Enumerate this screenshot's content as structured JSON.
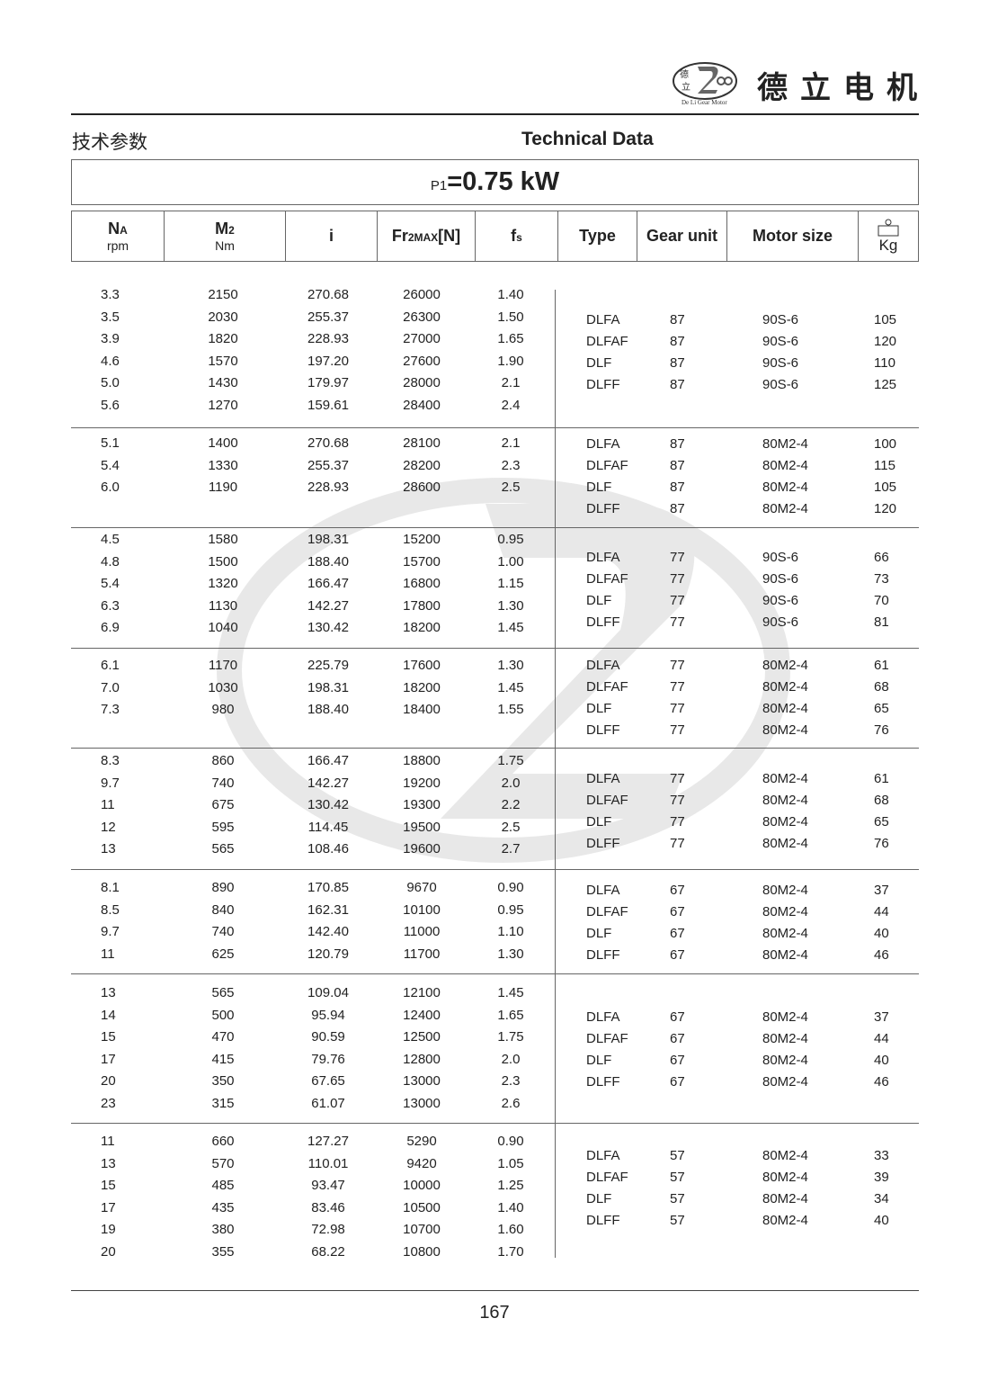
{
  "header": {
    "brand_cn": "德立电机",
    "logo_text": "De Li Gear Motor",
    "title_cn": "技术参数",
    "title_en": "Technical Data"
  },
  "power": {
    "symbol": "P",
    "subscript": "1",
    "value": "=0.75 kW"
  },
  "columns": {
    "na": {
      "main": "N",
      "sub": "A",
      "unit": "rpm"
    },
    "m2": {
      "main": "M",
      "sub": "2",
      "unit": "Nm"
    },
    "i": "i",
    "fr": {
      "main": "Fr",
      "sub": "2MAX",
      "tail": "[N]"
    },
    "fs": {
      "main": "f",
      "sub": "s"
    },
    "type": "Type",
    "gear_unit": "Gear unit",
    "motor_size": "Motor size",
    "kg": {
      "icon": "weight-icon",
      "unit": "Kg"
    }
  },
  "groups": [
    {
      "rows": [
        [
          "3.3",
          "2150",
          "270.68",
          "26000",
          "1.40"
        ],
        [
          "3.5",
          "2030",
          "255.37",
          "26300",
          "1.50"
        ],
        [
          "3.9",
          "1820",
          "228.93",
          "27000",
          "1.65"
        ],
        [
          "4.6",
          "1570",
          "197.20",
          "27600",
          "1.90"
        ],
        [
          "5.0",
          "1430",
          "179.97",
          "28000",
          "2.1"
        ],
        [
          "5.6",
          "1270",
          "159.61",
          "28400",
          "2.4"
        ]
      ],
      "units": [
        [
          "DLFA",
          "87",
          "90S-6",
          "105"
        ],
        [
          "DLFAF",
          "87",
          "90S-6",
          "120"
        ],
        [
          "DLF",
          "87",
          "90S-6",
          "110"
        ],
        [
          "DLFF",
          "87",
          "90S-6",
          "125"
        ]
      ]
    },
    {
      "rows": [
        [
          "5.1",
          "1400",
          "270.68",
          "28100",
          "2.1"
        ],
        [
          "5.4",
          "1330",
          "255.37",
          "28200",
          "2.3"
        ],
        [
          "6.0",
          "1190",
          "228.93",
          "28600",
          "2.5"
        ]
      ],
      "units": [
        [
          "DLFA",
          "87",
          "80M2-4",
          "100"
        ],
        [
          "DLFAF",
          "87",
          "80M2-4",
          "115"
        ],
        [
          "DLF",
          "87",
          "80M2-4",
          "105"
        ],
        [
          "DLFF",
          "87",
          "80M2-4",
          "120"
        ]
      ]
    },
    {
      "rows": [
        [
          "4.5",
          "1580",
          "198.31",
          "15200",
          "0.95"
        ],
        [
          "4.8",
          "1500",
          "188.40",
          "15700",
          "1.00"
        ],
        [
          "5.4",
          "1320",
          "166.47",
          "16800",
          "1.15"
        ],
        [
          "6.3",
          "1130",
          "142.27",
          "17800",
          "1.30"
        ],
        [
          "6.9",
          "1040",
          "130.42",
          "18200",
          "1.45"
        ]
      ],
      "units": [
        [
          "DLFA",
          "77",
          "90S-6",
          "66"
        ],
        [
          "DLFAF",
          "77",
          "90S-6",
          "73"
        ],
        [
          "DLF",
          "77",
          "90S-6",
          "70"
        ],
        [
          "DLFF",
          "77",
          "90S-6",
          "81"
        ]
      ]
    },
    {
      "rows": [
        [
          "6.1",
          "1170",
          "225.79",
          "17600",
          "1.30"
        ],
        [
          "7.0",
          "1030",
          "198.31",
          "18200",
          "1.45"
        ],
        [
          "7.3",
          "980",
          "188.40",
          "18400",
          "1.55"
        ]
      ],
      "units": [
        [
          "DLFA",
          "77",
          "80M2-4",
          "61"
        ],
        [
          "DLFAF",
          "77",
          "80M2-4",
          "68"
        ],
        [
          "DLF",
          "77",
          "80M2-4",
          "65"
        ],
        [
          "DLFF",
          "77",
          "80M2-4",
          "76"
        ]
      ]
    },
    {
      "rows": [
        [
          "8.3",
          "860",
          "166.47",
          "18800",
          "1.75"
        ],
        [
          "9.7",
          "740",
          "142.27",
          "19200",
          "2.0"
        ],
        [
          "11",
          "675",
          "130.42",
          "19300",
          "2.2"
        ],
        [
          "12",
          "595",
          "114.45",
          "19500",
          "2.5"
        ],
        [
          "13",
          "565",
          "108.46",
          "19600",
          "2.7"
        ]
      ],
      "units": [
        [
          "DLFA",
          "77",
          "80M2-4",
          "61"
        ],
        [
          "DLFAF",
          "77",
          "80M2-4",
          "68"
        ],
        [
          "DLF",
          "77",
          "80M2-4",
          "65"
        ],
        [
          "DLFF",
          "77",
          "80M2-4",
          "76"
        ]
      ]
    },
    {
      "rows": [
        [
          "8.1",
          "890",
          "170.85",
          "9670",
          "0.90"
        ],
        [
          "8.5",
          "840",
          "162.31",
          "10100",
          "0.95"
        ],
        [
          "9.7",
          "740",
          "142.40",
          "11000",
          "1.10"
        ],
        [
          "11",
          "625",
          "120.79",
          "11700",
          "1.30"
        ]
      ],
      "units": [
        [
          "DLFA",
          "67",
          "80M2-4",
          "37"
        ],
        [
          "DLFAF",
          "67",
          "80M2-4",
          "44"
        ],
        [
          "DLF",
          "67",
          "80M2-4",
          "40"
        ],
        [
          "DLFF",
          "67",
          "80M2-4",
          "46"
        ]
      ]
    },
    {
      "rows": [
        [
          "13",
          "565",
          "109.04",
          "12100",
          "1.45"
        ],
        [
          "14",
          "500",
          "95.94",
          "12400",
          "1.65"
        ],
        [
          "15",
          "470",
          "90.59",
          "12500",
          "1.75"
        ],
        [
          "17",
          "415",
          "79.76",
          "12800",
          "2.0"
        ],
        [
          "20",
          "350",
          "67.65",
          "13000",
          "2.3"
        ],
        [
          "23",
          "315",
          "61.07",
          "13000",
          "2.6"
        ]
      ],
      "units": [
        [
          "DLFA",
          "67",
          "80M2-4",
          "37"
        ],
        [
          "DLFAF",
          "67",
          "80M2-4",
          "44"
        ],
        [
          "DLF",
          "67",
          "80M2-4",
          "40"
        ],
        [
          "DLFF",
          "67",
          "80M2-4",
          "46"
        ]
      ]
    },
    {
      "rows": [
        [
          "11",
          "660",
          "127.27",
          "5290",
          "0.90"
        ],
        [
          "13",
          "570",
          "110.01",
          "9420",
          "1.05"
        ],
        [
          "15",
          "485",
          "93.47",
          "10000",
          "1.25"
        ],
        [
          "17",
          "435",
          "83.46",
          "10500",
          "1.40"
        ],
        [
          "19",
          "380",
          "72.98",
          "10700",
          "1.60"
        ],
        [
          "20",
          "355",
          "68.22",
          "10800",
          "1.70"
        ]
      ],
      "units": [
        [
          "DLFA",
          "57",
          "80M2-4",
          "33"
        ],
        [
          "DLFAF",
          "57",
          "80M2-4",
          "39"
        ],
        [
          "DLF",
          "57",
          "80M2-4",
          "34"
        ],
        [
          "DLFF",
          "57",
          "80M2-4",
          "40"
        ]
      ]
    }
  ],
  "footer": {
    "page_number": "167"
  }
}
